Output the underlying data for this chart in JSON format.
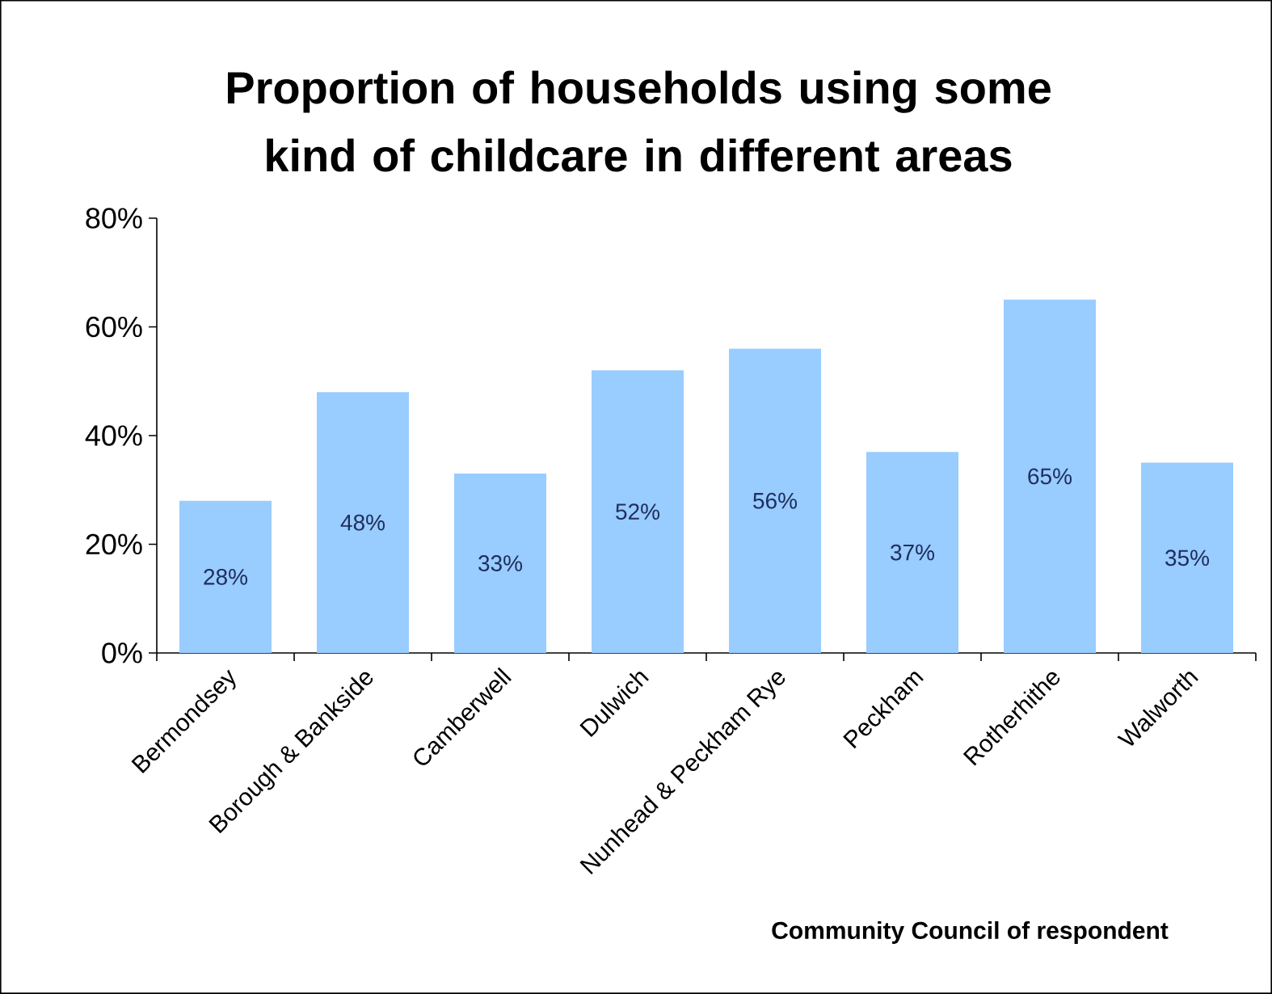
{
  "chart_data": {
    "type": "bar",
    "title": "Proportion of households using some kind of childcare in different areas",
    "xlabel": "Community Council of respondent",
    "categories": [
      "Bermondsey",
      "Borough & Bankside",
      "Camberwell",
      "Dulwich",
      "Nunhead & Peckham Rye",
      "Peckham",
      "Rotherhithe",
      "Walworth"
    ],
    "values": [
      28,
      48,
      33,
      52,
      56,
      37,
      65,
      35
    ],
    "value_labels": [
      "28%",
      "48%",
      "33%",
      "52%",
      "56%",
      "37%",
      "65%",
      "35%"
    ],
    "color": "#99ccff",
    "ylim": [
      0,
      80
    ],
    "yticks": [
      {
        "value": 0,
        "label": "0%"
      },
      {
        "value": 20,
        "label": "20%"
      },
      {
        "value": 40,
        "label": "40%"
      },
      {
        "value": 60,
        "label": "60%"
      },
      {
        "value": 80,
        "label": "80%"
      }
    ]
  }
}
